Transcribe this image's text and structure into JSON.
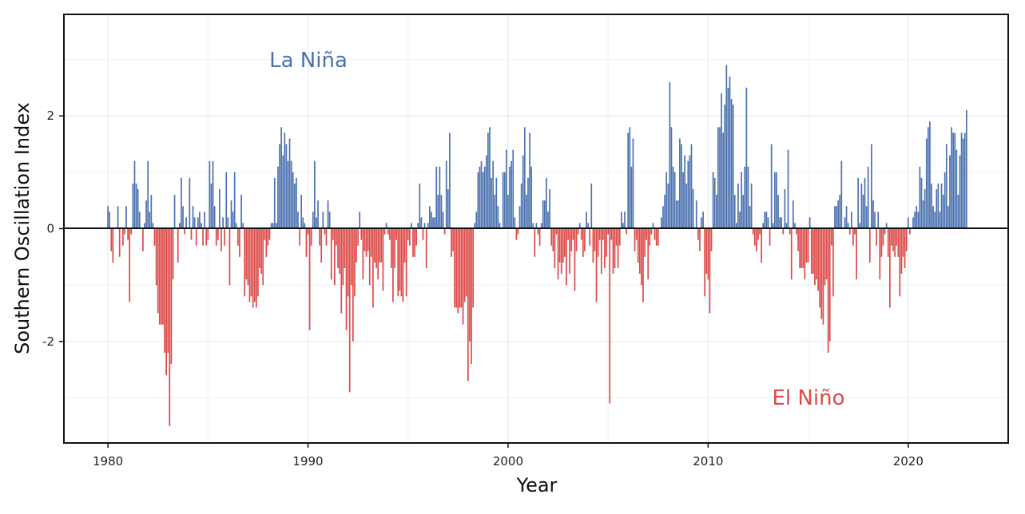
{
  "chart_data": {
    "type": "bar",
    "title": "",
    "xlabel": "Year",
    "ylabel": "Southern Oscillation Index",
    "xlim": [
      1977.8,
      2025.0
    ],
    "ylim": [
      -3.8,
      3.8
    ],
    "x_ticks": [
      "1980",
      "1990",
      "2000",
      "2010",
      "2020"
    ],
    "y_ticks": [
      "-2",
      "0",
      "2"
    ],
    "grid": true,
    "frequency": "monthly",
    "positive_color": "#4C72B0",
    "negative_color": "#DD4A48",
    "annotations": [
      {
        "text": "La Niña",
        "color": "#4C72B0"
      },
      {
        "text": "El Niño",
        "color": "#DD4A48"
      }
    ],
    "values_by_year": {
      "1980": [
        0.4,
        0.3,
        -0.4,
        -0.6,
        0,
        0,
        0.4,
        -0.5,
        0,
        -0.3,
        -0.1,
        0.4
      ],
      "1981": [
        -0.2,
        -1.3,
        -0.1,
        0.8,
        1.2,
        0.8,
        0.7,
        0.3,
        0,
        -0.4,
        0.1,
        0.5
      ],
      "1982": [
        1.2,
        0.3,
        0.6,
        0.1,
        -0.3,
        -1.0,
        -1.5,
        -1.7,
        -1.7,
        -1.7,
        -2.2,
        -2.6
      ],
      "1983": [
        -2.2,
        -3.5,
        -2.4,
        -0.9,
        0.6,
        0,
        -0.6,
        0.1,
        0.9,
        0.4,
        -0.1,
        0.2
      ],
      "1984": [
        0.0,
        0.9,
        -0.2,
        0.4,
        0.2,
        -0.3,
        0.2,
        0.3,
        0.1,
        -0.3,
        0.3,
        -0.3
      ],
      "1985": [
        -0.2,
        1.2,
        0.8,
        1.2,
        0.4,
        -0.3,
        -0.2,
        0.7,
        -0.4,
        0.2,
        -0.3,
        1.0
      ],
      "1986": [
        0.2,
        -1.0,
        0.5,
        0.3,
        1.0,
        0.1,
        -0.3,
        -0.5,
        0.6,
        0.1,
        -1.2,
        -0.9
      ],
      "1987": [
        -1.0,
        -1.3,
        -1.2,
        -1.4,
        -1.3,
        -1.4,
        -1.2,
        -0.7,
        -0.8,
        -1.0,
        -0.2,
        -0.5
      ],
      "1988": [
        -0.3,
        -0.2,
        0.1,
        0.1,
        0.9,
        0.1,
        1.1,
        1.5,
        1.8,
        1.3,
        1.7,
        1.5
      ],
      "1989": [
        1.2,
        1.6,
        1.2,
        1.0,
        0.8,
        0.9,
        0.3,
        -0.3,
        0.6,
        0.2,
        0.1,
        -0.5
      ],
      "1990": [
        -0.1,
        -1.8,
        -0.3,
        0.3,
        1.2,
        0.2,
        0.5,
        -0.3,
        -0.6,
        0.3,
        -0.1,
        -0.3
      ],
      "1991": [
        0.5,
        0.3,
        -0.9,
        -0.2,
        -1.0,
        -0.3,
        -0.7,
        -0.8,
        -1.5,
        -1.0,
        -0.7,
        -1.8
      ],
      "1992": [
        -1.2,
        -2.9,
        -1.0,
        -2.0,
        -1.2,
        -0.6,
        -0.3,
        0.3,
        -0.2,
        -0.9,
        -0.4,
        -0.5
      ],
      "1993": [
        -0.4,
        -1.0,
        -0.5,
        -1.4,
        -0.6,
        -0.7,
        -0.9,
        -0.6,
        -0.6,
        -1.1,
        -0.1,
        0.1
      ],
      "1994": [
        -0.1,
        -0.2,
        -0.7,
        -1.3,
        -0.7,
        -0.2,
        -1.2,
        -1.1,
        -1.2,
        -1.3,
        -0.6,
        -1.2
      ],
      "1995": [
        -0.2,
        -0.3,
        0.1,
        -0.5,
        -0.5,
        -0.3,
        0.1,
        0.8,
        0.2,
        -0.2,
        0.1,
        -0.7
      ],
      "1996": [
        0.1,
        0.4,
        0.3,
        0.2,
        0.2,
        1.1,
        0.6,
        1.1,
        0.6,
        0.3,
        -0.1,
        1.2
      ],
      "1997": [
        0.7,
        1.7,
        -0.5,
        -0.4,
        -1.4,
        -1.4,
        -1.5,
        -1.4,
        -1.4,
        -1.7,
        -1.3,
        -1.2
      ],
      "1998": [
        -2.7,
        -2.0,
        -2.4,
        -1.4,
        0.1,
        0.3,
        1.0,
        1.1,
        1.2,
        1.0,
        1.1,
        1.3
      ],
      "1999": [
        1.7,
        1.8,
        0.9,
        1.2,
        0.6,
        0.9,
        0.4,
        0.1,
        0.0,
        1.0,
        1.0,
        1.4
      ],
      "2000": [
        0.6,
        1.1,
        1.2,
        1.4,
        0.2,
        -0.2,
        -0.1,
        0.4,
        0.8,
        1.3,
        1.8,
        0.6
      ],
      "2001": [
        0.9,
        1.7,
        1.1,
        0.1,
        -0.5,
        0.1,
        -0.1,
        -0.3,
        0.1,
        0.5,
        0.5,
        0.9
      ],
      "2002": [
        0.3,
        0.7,
        -0.3,
        -0.4,
        -0.7,
        -0.1,
        -0.9,
        -0.6,
        -0.8,
        -0.6,
        -0.5,
        -1.0
      ],
      "2003": [
        -0.2,
        -0.8,
        -0.4,
        -0.2,
        -1.1,
        -0.4,
        -0.1,
        0.1,
        -0.2,
        -0.5,
        -0.4,
        0.3
      ],
      "2004": [
        0.1,
        -0.3,
        0.8,
        -0.6,
        -0.4,
        -1.3,
        -0.5,
        -0.2,
        -0.8,
        -0.2,
        -0.7,
        -0.5
      ],
      "2005": [
        -0.1,
        -3.1,
        -0.2,
        -0.8,
        -0.7,
        -0.3,
        -0.7,
        -0.3,
        0.3,
        0.1,
        0.3,
        -0.1
      ],
      "2006": [
        1.7,
        1.8,
        1.1,
        1.6,
        -0.4,
        -0.2,
        -0.6,
        -0.8,
        -1.0,
        -1.3,
        -0.5,
        -0.2
      ],
      "2007": [
        -0.9,
        -0.3,
        -0.1,
        0.1,
        -0.2,
        -0.3,
        -0.3,
        0.0,
        0.2,
        0.4,
        0.6,
        1.0
      ],
      "2008": [
        0.8,
        2.6,
        1.8,
        1.1,
        1.0,
        0.5,
        0.5,
        1.6,
        1.5,
        1.0,
        1.3,
        0.8
      ],
      "2009": [
        1.2,
        1.3,
        1.5,
        0.7,
        0.0,
        0.5,
        -0.2,
        -0.4,
        0.2,
        0.3,
        -1.2,
        -0.8
      ],
      "2010": [
        -0.9,
        -1.5,
        -0.4,
        1.0,
        0.9,
        0.6,
        1.8,
        1.8,
        2.4,
        1.7,
        2.2,
        2.9
      ],
      "2011": [
        2.5,
        2.7,
        2.3,
        2.2,
        0.6,
        0.1,
        0.8,
        0.3,
        1.0,
        0.6,
        1.1,
        2.5
      ],
      "2012": [
        1.1,
        0.4,
        0.8,
        -0.1,
        -0.3,
        -0.4,
        -0.2,
        -0.1,
        -0.6,
        0.1,
        0.3,
        0.3
      ],
      "2013": [
        0.2,
        -0.3,
        1.5,
        0.1,
        1.0,
        1.0,
        0.6,
        0.2,
        0.2,
        -0.1,
        0.7,
        0.1
      ],
      "2014": [
        1.4,
        -0.1,
        -0.9,
        0.5,
        0.1,
        -0.1,
        -0.4,
        -0.7,
        -0.7,
        -0.7,
        -0.9,
        -0.6
      ],
      "2015": [
        -0.6,
        0.2,
        -0.8,
        -0.8,
        -1.0,
        -0.9,
        -1.1,
        -1.4,
        -1.6,
        -1.7,
        -1.0,
        -0.9
      ],
      "2016": [
        -2.2,
        -2.0,
        -0.3,
        -1.2,
        0.4,
        0.4,
        0.5,
        0.6,
        1.2,
        0.0,
        0.2,
        0.4
      ],
      "2017": [
        0.1,
        -0.1,
        0.3,
        -0.3,
        -0.1,
        -0.9,
        0.9,
        0.1,
        0.8,
        0.6,
        0.9,
        0.4
      ],
      "2018": [
        1.1,
        -0.6,
        1.5,
        0.5,
        0.3,
        -0.3,
        0.3,
        -0.9,
        -0.5,
        -0.3,
        -0.1,
        0.1
      ],
      "2019": [
        -0.5,
        -1.4,
        -0.3,
        -0.4,
        -0.5,
        -0.3,
        -0.5,
        -1.2,
        -0.8,
        -0.5,
        -0.7,
        -0.4
      ],
      "2020": [
        0.2,
        -0.1,
        0.0,
        0.2,
        0.3,
        0.4,
        0.3,
        1.1,
        0.9,
        0.5,
        0.7,
        1.6
      ],
      "2021": [
        1.8,
        1.9,
        0.8,
        0.4,
        0.3,
        0.7,
        0.8,
        0.3,
        0.8,
        0.6,
        1.0,
        1.5
      ],
      "2022": [
        0.4,
        1.3,
        1.8,
        1.7,
        1.7,
        1.4,
        0.6,
        1.3,
        1.7,
        1.6,
        1.7,
        2.1
      ]
    }
  }
}
